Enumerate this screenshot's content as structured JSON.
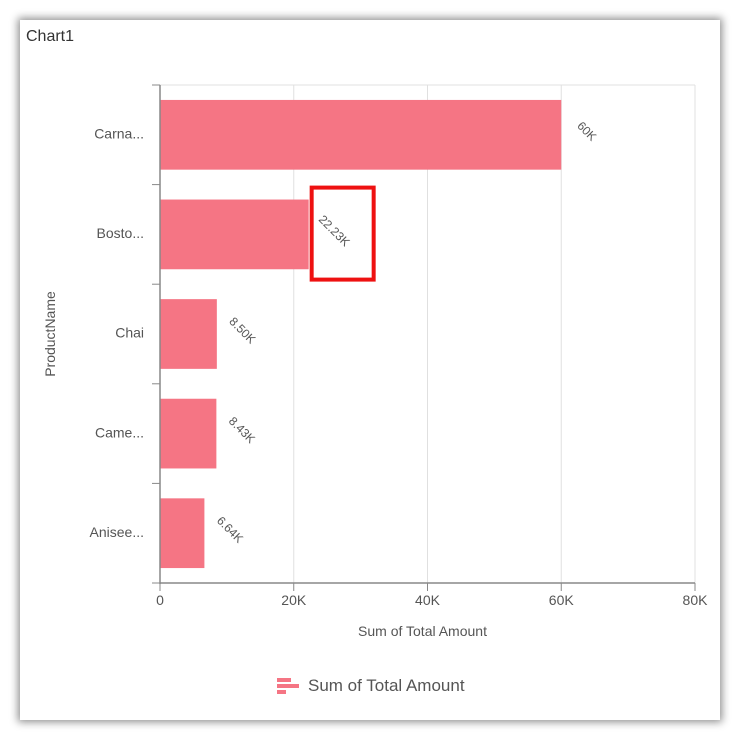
{
  "chart_data": {
    "type": "bar",
    "orientation": "horizontal",
    "title": "Chart1",
    "categories": [
      "Carna...",
      "Bosto...",
      "Chai",
      "Came...",
      "Anisee..."
    ],
    "series": [
      {
        "name": "Sum of Total Amount",
        "values": [
          60000,
          22230,
          8500,
          8430,
          6640
        ],
        "data_labels": [
          "60K",
          "22.23K",
          "8.50K",
          "8.43K",
          "6.64K"
        ],
        "color": "#f57584"
      }
    ],
    "xlabel": "Sum of Total Amount",
    "ylabel": "ProductName",
    "xlim": [
      0,
      80000
    ],
    "xticks": [
      0,
      20000,
      40000,
      60000,
      80000
    ],
    "xtick_labels": [
      "0",
      "20K",
      "40K",
      "60K",
      "80K"
    ],
    "grid": true,
    "legend": "bottom",
    "highlight": {
      "category": "Bosto...",
      "label": "22.23K",
      "color": "#ee1111"
    }
  },
  "legend_icon": "bar-chart-icon"
}
